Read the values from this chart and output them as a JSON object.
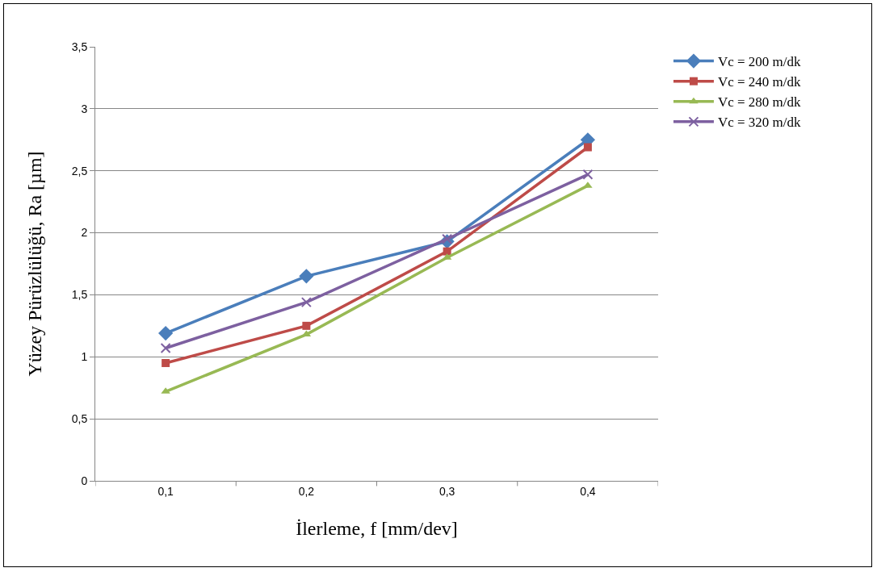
{
  "chart_data": {
    "type": "line",
    "xlabel": "İlerleme, f [mm/dev]",
    "ylabel": "Yüzey Pürüzlülüğü, Ra [µm]",
    "categories": [
      "0,1",
      "0,2",
      "0,3",
      "0,4"
    ],
    "series": [
      {
        "name": "Vc = 200 m/dk",
        "color": "#4a7ebb",
        "marker": "diamond",
        "values": [
          1.19,
          1.65,
          1.93,
          2.75
        ]
      },
      {
        "name": "Vc = 240 m/dk",
        "color": "#be4b48",
        "marker": "square",
        "values": [
          0.95,
          1.25,
          1.85,
          2.69
        ]
      },
      {
        "name": "Vc = 280 m/dk",
        "color": "#98b954",
        "marker": "triangle",
        "values": [
          0.72,
          1.18,
          1.8,
          2.38
        ]
      },
      {
        "name": "Vc = 320 m/dk",
        "color": "#7d60a0",
        "marker": "cross",
        "values": [
          1.07,
          1.44,
          1.95,
          2.47
        ]
      }
    ],
    "ylim": [
      0,
      3.5
    ],
    "yticks": [
      0,
      {
        "value": 0.5,
        "label": "0,5"
      },
      1,
      {
        "value": 1.5,
        "label": "1,5"
      },
      2,
      {
        "value": 2.5,
        "label": "2,5"
      },
      3,
      {
        "value": 3.5,
        "label": "3,5"
      }
    ],
    "grid": "y",
    "legend": "right",
    "line_style": "solid"
  }
}
